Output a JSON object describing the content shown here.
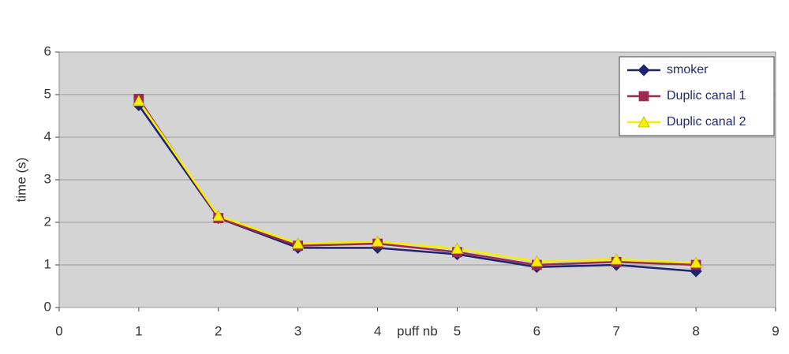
{
  "chart_data": {
    "type": "line",
    "x_label": "puff nb",
    "y_label": "time (s)",
    "xlim": [
      0,
      9
    ],
    "xticks": [
      0,
      1,
      2,
      3,
      4,
      5,
      6,
      7,
      8,
      9
    ],
    "ylim": [
      0,
      6
    ],
    "yticks": [
      0,
      1,
      2,
      3,
      4,
      5,
      6
    ],
    "grid": true,
    "legend": "top-right",
    "background": "#d4d4d4",
    "x": [
      1,
      2,
      3,
      4,
      5,
      6,
      7,
      8
    ],
    "series": [
      {
        "name": "smoker",
        "color": "#1f2470",
        "marker": "diamond",
        "values": [
          4.75,
          2.1,
          1.4,
          1.4,
          1.25,
          0.95,
          1.0,
          0.85
        ]
      },
      {
        "name": "Duplic canal 1",
        "color": "#9c2a4e",
        "marker": "square",
        "values": [
          4.9,
          2.1,
          1.45,
          1.5,
          1.3,
          1.0,
          1.07,
          1.0
        ]
      },
      {
        "name": "Duplic canal 2",
        "color": "#f5f000",
        "marker": "triangle",
        "values": [
          4.85,
          2.15,
          1.5,
          1.55,
          1.38,
          1.08,
          1.13,
          1.05
        ]
      }
    ]
  }
}
